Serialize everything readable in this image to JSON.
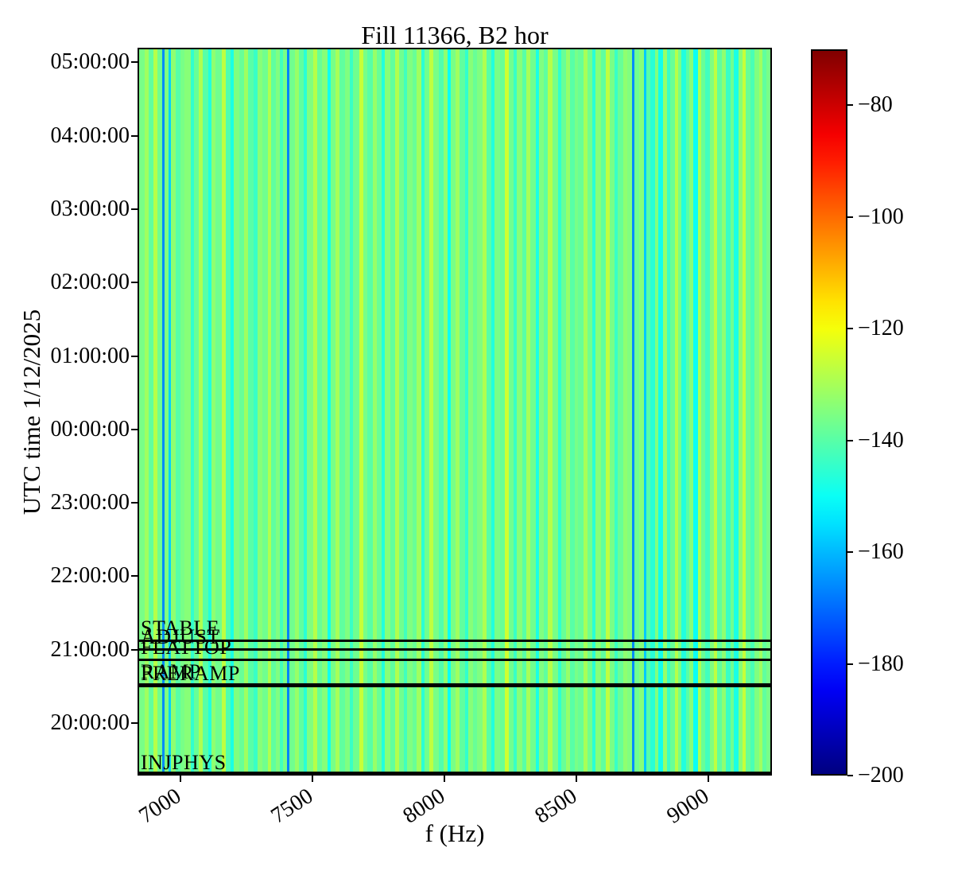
{
  "chart_data": {
    "type": "heatmap",
    "title": "Fill 11366, B2 hor",
    "xlabel": "f (Hz)",
    "ylabel": "UTC time 1/12/2025",
    "x_axis": {
      "unit": "Hz",
      "min": 6837,
      "max": 9241,
      "ticks": [
        7000,
        7500,
        8000,
        8500,
        9000
      ]
    },
    "y_axis": {
      "start_bottom": "19:17:00",
      "end_top": "05:12:00",
      "ticks": [
        "05:00:00",
        "04:00:00",
        "03:00:00",
        "02:00:00",
        "01:00:00",
        "00:00:00",
        "23:00:00",
        "22:00:00",
        "21:00:00",
        "20:00:00"
      ]
    },
    "colorbar": {
      "colormap": "jet",
      "vmin": -200,
      "vmax": -70,
      "ticks": [
        -80,
        -100,
        -120,
        -140,
        -160,
        -180,
        -200
      ]
    },
    "beam_modes": [
      {
        "label": "STABLE",
        "time": "21:09"
      },
      {
        "label": "ADJUST",
        "time": "21:02"
      },
      {
        "label": "FLATTOP",
        "time": "20:53"
      },
      {
        "label": "RAMP",
        "time": "20:33"
      },
      {
        "label": "PRERAMP",
        "time": "20:32"
      },
      {
        "label": "INJPHYS",
        "time": "19:17"
      }
    ],
    "stripes_note": "vertical spectral columns, constant over time; pairs of [width_weight, value_dB]",
    "stripes": [
      [
        7,
        -136
      ],
      [
        5,
        -131
      ],
      [
        6,
        -139
      ],
      [
        5,
        -128
      ],
      [
        6,
        -137
      ],
      [
        3,
        -166
      ],
      [
        5,
        -135
      ],
      [
        3,
        -157
      ],
      [
        6,
        -133
      ],
      [
        6,
        -140
      ],
      [
        5,
        -136
      ],
      [
        8,
        -134
      ],
      [
        4,
        -145
      ],
      [
        6,
        -138
      ],
      [
        5,
        -129
      ],
      [
        7,
        -140
      ],
      [
        4,
        -147
      ],
      [
        6,
        -133
      ],
      [
        8,
        -137
      ],
      [
        5,
        -127
      ],
      [
        6,
        -141
      ],
      [
        4,
        -148
      ],
      [
        7,
        -135
      ],
      [
        6,
        -138
      ],
      [
        5,
        -131
      ],
      [
        7,
        -140
      ],
      [
        5,
        -144
      ],
      [
        6,
        -134
      ],
      [
        7,
        -137
      ],
      [
        4,
        -129
      ],
      [
        6,
        -139
      ],
      [
        5,
        -135
      ],
      [
        4,
        -143
      ],
      [
        5,
        -136
      ],
      [
        3,
        -167
      ],
      [
        7,
        -137
      ],
      [
        5,
        -132
      ],
      [
        6,
        -139
      ],
      [
        4,
        -146
      ],
      [
        8,
        -135
      ],
      [
        5,
        -128
      ],
      [
        6,
        -138
      ],
      [
        7,
        -134
      ],
      [
        4,
        -149
      ],
      [
        6,
        -136
      ],
      [
        5,
        -130
      ],
      [
        7,
        -139
      ],
      [
        6,
        -135
      ],
      [
        4,
        -144
      ],
      [
        8,
        -137
      ],
      [
        5,
        -126
      ],
      [
        6,
        -136
      ],
      [
        7,
        -140
      ],
      [
        5,
        -132
      ],
      [
        6,
        -138
      ],
      [
        4,
        -147
      ],
      [
        7,
        -134
      ],
      [
        6,
        -139
      ],
      [
        5,
        -129
      ],
      [
        6,
        -137
      ],
      [
        4,
        -143
      ],
      [
        7,
        -135
      ],
      [
        5,
        -138
      ],
      [
        6,
        -131
      ],
      [
        4,
        -146
      ],
      [
        6,
        -137
      ],
      [
        5,
        -127
      ],
      [
        7,
        -136
      ],
      [
        6,
        -141
      ],
      [
        5,
        -133
      ],
      [
        4,
        -150
      ],
      [
        6,
        -136
      ],
      [
        5,
        -131
      ],
      [
        7,
        -139
      ],
      [
        4,
        -145
      ],
      [
        6,
        -134
      ],
      [
        5,
        -138
      ],
      [
        7,
        -135
      ],
      [
        5,
        -129
      ],
      [
        6,
        -140
      ],
      [
        4,
        -147
      ],
      [
        7,
        -136
      ],
      [
        6,
        -138
      ],
      [
        5,
        -125
      ],
      [
        6,
        -137
      ],
      [
        4,
        -144
      ],
      [
        7,
        -134
      ],
      [
        6,
        -140
      ],
      [
        5,
        -130
      ],
      [
        7,
        -137
      ],
      [
        4,
        -148
      ],
      [
        6,
        -135
      ],
      [
        5,
        -139
      ],
      [
        6,
        -128
      ],
      [
        7,
        -136
      ],
      [
        4,
        -145
      ],
      [
        6,
        -138
      ],
      [
        5,
        -132
      ],
      [
        6,
        -140
      ],
      [
        4,
        -136
      ],
      [
        7,
        -138
      ],
      [
        5,
        -130
      ],
      [
        6,
        -137
      ],
      [
        4,
        -146
      ],
      [
        7,
        -134
      ],
      [
        6,
        -139
      ],
      [
        5,
        -127
      ],
      [
        6,
        -136
      ],
      [
        4,
        -144
      ],
      [
        7,
        -138
      ],
      [
        5,
        -133
      ],
      [
        6,
        -135
      ],
      [
        3,
        -166
      ],
      [
        6,
        -137
      ],
      [
        6,
        -134
      ],
      [
        3,
        -158
      ],
      [
        5,
        -140
      ],
      [
        6,
        -146
      ],
      [
        4,
        -135
      ],
      [
        6,
        -149
      ],
      [
        5,
        -132
      ],
      [
        4,
        -144
      ],
      [
        6,
        -138
      ],
      [
        4,
        -128
      ],
      [
        5,
        -136
      ],
      [
        6,
        -147
      ],
      [
        4,
        -140
      ],
      [
        5,
        -134
      ],
      [
        6,
        -150
      ],
      [
        4,
        -129
      ],
      [
        5,
        -138
      ],
      [
        6,
        -143
      ],
      [
        5,
        -135
      ],
      [
        4,
        -127
      ],
      [
        6,
        -139
      ],
      [
        5,
        -133
      ],
      [
        6,
        -144
      ],
      [
        4,
        -137
      ],
      [
        6,
        -148
      ],
      [
        5,
        -134
      ],
      [
        4,
        -126
      ],
      [
        6,
        -138
      ],
      [
        5,
        -142
      ],
      [
        6,
        -135
      ],
      [
        4,
        -131
      ],
      [
        5,
        -139
      ],
      [
        5,
        -136
      ]
    ]
  }
}
